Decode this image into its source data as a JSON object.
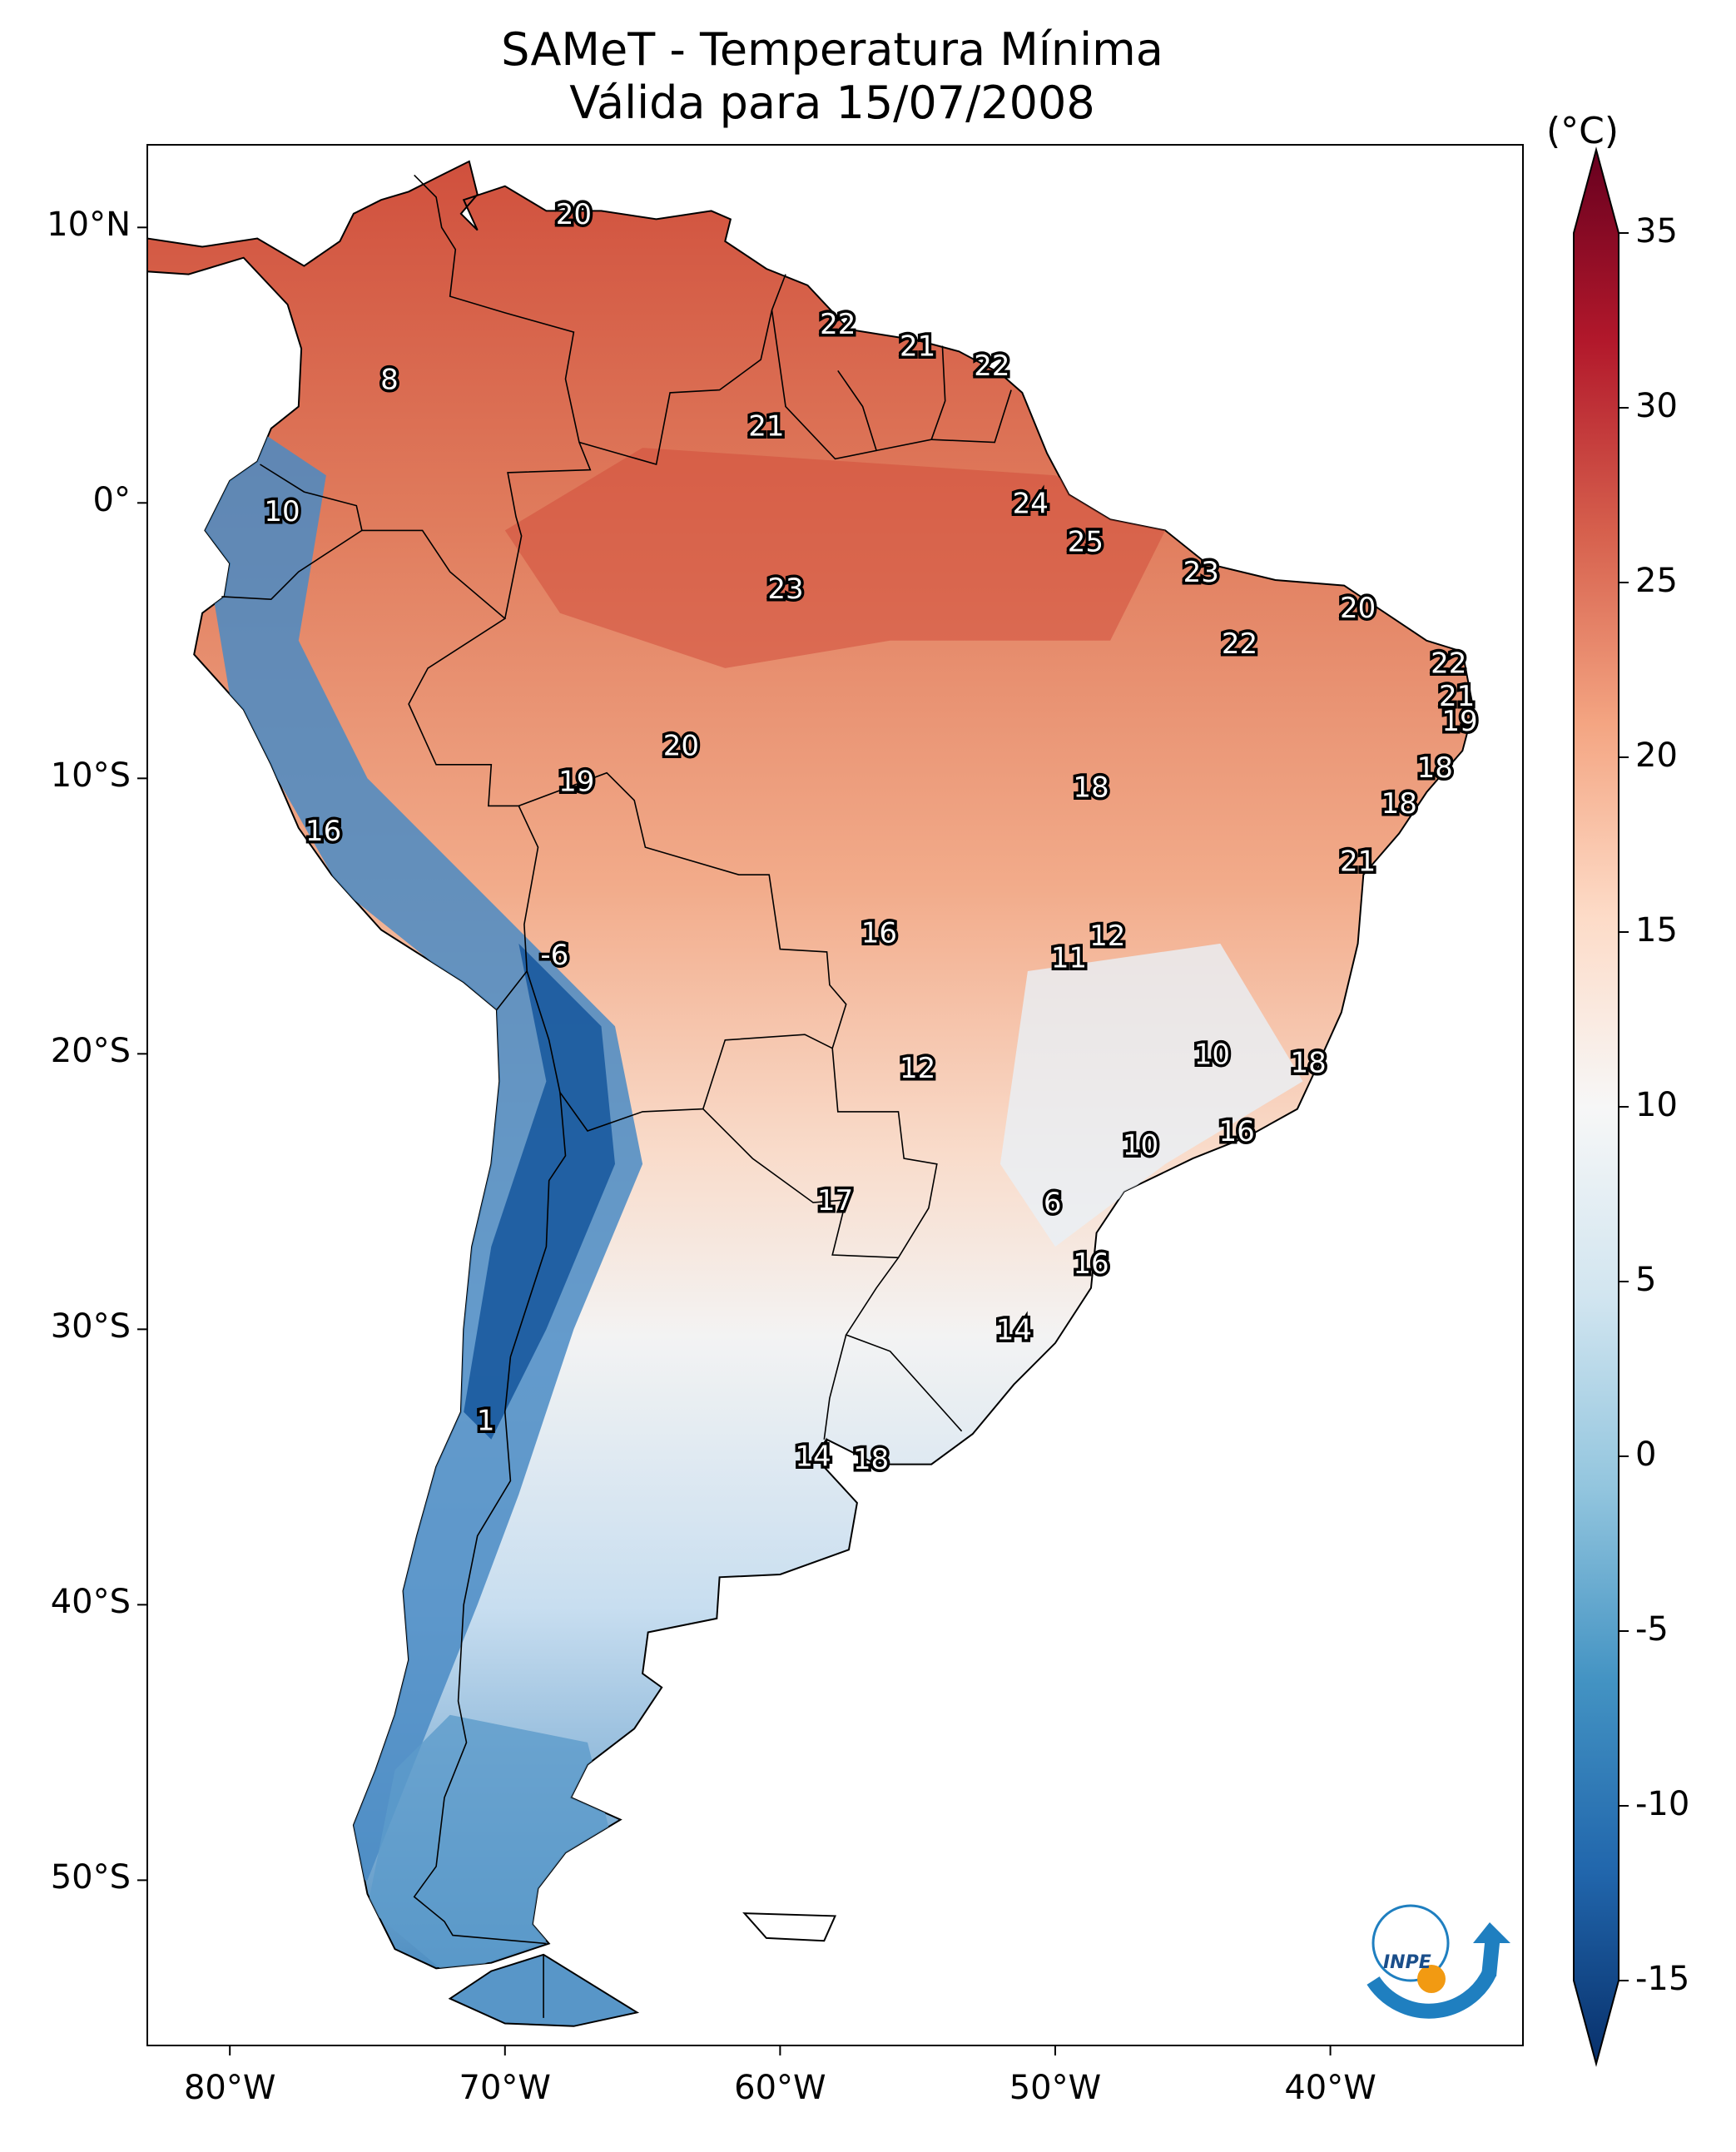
{
  "title": {
    "line1": "SAMeT - Temperatura Mínima",
    "line2": "Válida para 15/07/2008"
  },
  "axes": {
    "lat_ticks": [
      "10°N",
      "0°",
      "10°S",
      "20°S",
      "30°S",
      "40°S",
      "50°S"
    ],
    "lon_ticks": [
      "80°W",
      "70°W",
      "60°W",
      "50°W",
      "40°W"
    ],
    "lat_values": [
      10,
      0,
      -10,
      -20,
      -30,
      -40,
      -50
    ],
    "lon_values": [
      -80,
      -70,
      -60,
      -50,
      -40
    ]
  },
  "colorbar": {
    "unit": "(°C)",
    "min": -15,
    "max": 35,
    "ticks": [
      "35",
      "30",
      "25",
      "20",
      "15",
      "10",
      "5",
      "0",
      "-5",
      "-10",
      "-15"
    ],
    "tick_values": [
      35,
      30,
      25,
      20,
      15,
      10,
      5,
      0,
      -5,
      -10,
      -15
    ],
    "colors_low_to_high": [
      "#08306b",
      "#2166ac",
      "#4393c3",
      "#92c5de",
      "#d1e5f0",
      "#f7f7f7",
      "#fddbc7",
      "#f4a582",
      "#d6604d",
      "#b2182b",
      "#67001f"
    ]
  },
  "logo": {
    "text": "INPE"
  },
  "labels": [
    {
      "text": "20",
      "lon": -67.5,
      "lat": 10.5
    },
    {
      "text": "8",
      "lon": -74.2,
      "lat": 4.5
    },
    {
      "text": "22",
      "lon": -57.9,
      "lat": 6.5
    },
    {
      "text": "21",
      "lon": -55.0,
      "lat": 5.7
    },
    {
      "text": "22",
      "lon": -52.3,
      "lat": 5.0
    },
    {
      "text": "21",
      "lon": -60.5,
      "lat": 2.8
    },
    {
      "text": "10",
      "lon": -78.1,
      "lat": -0.3
    },
    {
      "text": "24",
      "lon": -50.9,
      "lat": 0.0
    },
    {
      "text": "25",
      "lon": -48.9,
      "lat": -1.4
    },
    {
      "text": "23",
      "lon": -59.8,
      "lat": -3.1
    },
    {
      "text": "23",
      "lon": -44.7,
      "lat": -2.5
    },
    {
      "text": "20",
      "lon": -39.0,
      "lat": -3.8
    },
    {
      "text": "22",
      "lon": -43.3,
      "lat": -5.1
    },
    {
      "text": "22",
      "lon": -35.7,
      "lat": -5.8
    },
    {
      "text": "21",
      "lon": -35.4,
      "lat": -7.0
    },
    {
      "text": "19",
      "lon": -35.3,
      "lat": -7.9
    },
    {
      "text": "20",
      "lon": -63.6,
      "lat": -8.8
    },
    {
      "text": "19",
      "lon": -67.4,
      "lat": -10.1
    },
    {
      "text": "18",
      "lon": -36.2,
      "lat": -9.6
    },
    {
      "text": "18",
      "lon": -48.7,
      "lat": -10.3
    },
    {
      "text": "18",
      "lon": -37.5,
      "lat": -10.9
    },
    {
      "text": "16",
      "lon": -76.6,
      "lat": -11.9
    },
    {
      "text": "21",
      "lon": -39.0,
      "lat": -13.0
    },
    {
      "text": "16",
      "lon": -56.4,
      "lat": -15.6
    },
    {
      "text": "12",
      "lon": -48.1,
      "lat": -15.7
    },
    {
      "text": "11",
      "lon": -49.5,
      "lat": -16.5
    },
    {
      "text": "-6",
      "lon": -68.2,
      "lat": -16.4
    },
    {
      "text": "10",
      "lon": -44.3,
      "lat": -20.0
    },
    {
      "text": "18",
      "lon": -40.8,
      "lat": -20.3
    },
    {
      "text": "12",
      "lon": -55.0,
      "lat": -20.5
    },
    {
      "text": "16",
      "lon": -43.4,
      "lat": -22.8
    },
    {
      "text": "10",
      "lon": -46.9,
      "lat": -23.3
    },
    {
      "text": "17",
      "lon": -58.0,
      "lat": -25.3
    },
    {
      "text": "6",
      "lon": -50.1,
      "lat": -25.4
    },
    {
      "text": "16",
      "lon": -48.7,
      "lat": -27.6
    },
    {
      "text": "14",
      "lon": -51.5,
      "lat": -30.0
    },
    {
      "text": "1",
      "lon": -70.7,
      "lat": -33.3
    },
    {
      "text": "14",
      "lon": -58.8,
      "lat": -34.6
    },
    {
      "text": "18",
      "lon": -56.7,
      "lat": -34.7
    }
  ]
}
